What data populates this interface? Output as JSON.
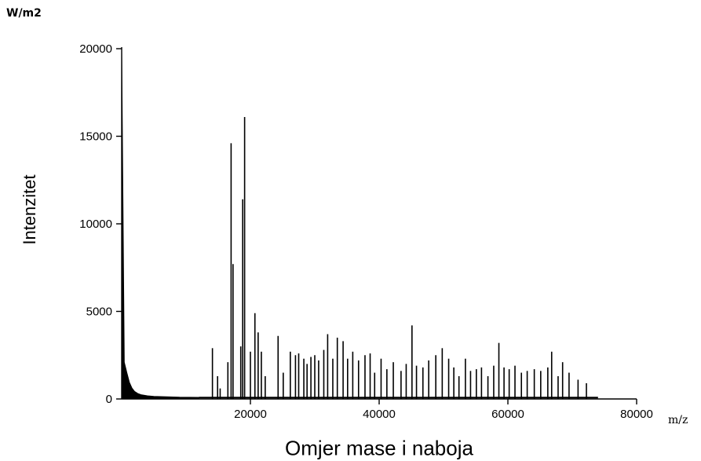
{
  "chart_data": {
    "type": "bar",
    "title": "",
    "xlabel": "Omjer mase i naboja",
    "ylabel": "Intenzitet",
    "y_unit": "W/m2",
    "x_unit": "m/z",
    "xlim": [
      0,
      80000
    ],
    "ylim": [
      0,
      20000
    ],
    "x_ticks": [
      20000,
      40000,
      60000,
      80000
    ],
    "x_tick_labels": [
      "20000",
      "40000",
      "60000",
      "80000"
    ],
    "y_ticks": [
      0,
      5000,
      10000,
      15000,
      20000
    ],
    "y_tick_labels": [
      "0",
      "5000",
      "10000",
      "15000",
      "20000"
    ],
    "grid": false,
    "baseline_decay": {
      "x": [
        0,
        400,
        800,
        1200,
        1600,
        2000,
        2500,
        3000,
        4000,
        5000,
        7000,
        9000,
        12000
      ],
      "y": [
        20000,
        2100,
        1500,
        950,
        620,
        430,
        310,
        240,
        180,
        150,
        120,
        100,
        90
      ]
    },
    "peaks": {
      "x": [
        14100,
        14900,
        15300,
        16500,
        17000,
        17300,
        18500,
        18800,
        19100,
        20000,
        20700,
        21200,
        21700,
        22300,
        24300,
        25100,
        26200,
        27000,
        27500,
        28300,
        28800,
        29400,
        30000,
        30600,
        31400,
        32000,
        32800,
        33500,
        34400,
        35100,
        35900,
        36800,
        37800,
        38600,
        39300,
        40300,
        41200,
        42200,
        43400,
        44200,
        45100,
        45800,
        46800,
        47700,
        48800,
        49800,
        50800,
        51600,
        52400,
        53400,
        54200,
        55100,
        55900,
        56900,
        57800,
        58600,
        59400,
        60200,
        61100,
        62100,
        63000,
        64100,
        65100,
        66200,
        66800,
        67800,
        68500,
        69500,
        70900,
        72200
      ],
      "y": [
        2900,
        1300,
        600,
        2100,
        14600,
        7700,
        3000,
        11400,
        16100,
        2700,
        4900,
        3800,
        2700,
        1300,
        3600,
        1500,
        2700,
        2500,
        2600,
        2300,
        2000,
        2400,
        2500,
        2200,
        2800,
        3700,
        2300,
        3500,
        3300,
        2300,
        2700,
        2200,
        2500,
        2600,
        1500,
        2300,
        1700,
        2100,
        1600,
        2000,
        4200,
        1900,
        1800,
        2200,
        2500,
        2900,
        2300,
        1800,
        1300,
        2300,
        1600,
        1700,
        1800,
        1300,
        1900,
        3200,
        1800,
        1700,
        1900,
        1500,
        1600,
        1700,
        1600,
        1800,
        2700,
        1300,
        2100,
        1500,
        1100,
        900
      ]
    }
  }
}
